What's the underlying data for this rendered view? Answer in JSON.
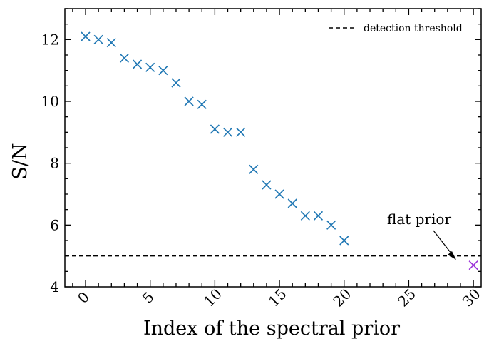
{
  "chart_data": {
    "type": "scatter",
    "title": "",
    "xlabel": "Index of the spectral prior",
    "ylabel": "S/N",
    "xlim": [
      -1.6,
      30.6
    ],
    "ylim": [
      4,
      13
    ],
    "xticks": [
      0,
      5,
      10,
      15,
      20,
      25,
      30
    ],
    "yticks": [
      4,
      6,
      8,
      10,
      12
    ],
    "grid": false,
    "legend_position": "top-right",
    "series": [
      {
        "marker": "x",
        "color": "#1f77b4",
        "x": [
          0,
          1,
          2,
          3,
          4,
          5,
          6,
          7,
          8,
          9,
          10,
          11,
          12,
          13,
          14,
          15,
          16,
          17,
          18,
          19,
          20
        ],
        "y": [
          12.1,
          12.0,
          11.9,
          11.4,
          11.2,
          11.1,
          11.0,
          10.6,
          10.0,
          9.9,
          9.1,
          9.0,
          9.0,
          7.8,
          7.3,
          7.0,
          6.7,
          6.3,
          6.3,
          6.0,
          5.5
        ]
      },
      {
        "marker": "x",
        "color": "#9b30d9",
        "x": [
          30
        ],
        "y": [
          4.7
        ]
      }
    ],
    "threshold": {
      "label": "detection threshold",
      "value": 5.0,
      "style": "dashed",
      "color": "#000000"
    },
    "annotation": {
      "text": "flat prior",
      "x": 30,
      "y": 4.7
    }
  }
}
